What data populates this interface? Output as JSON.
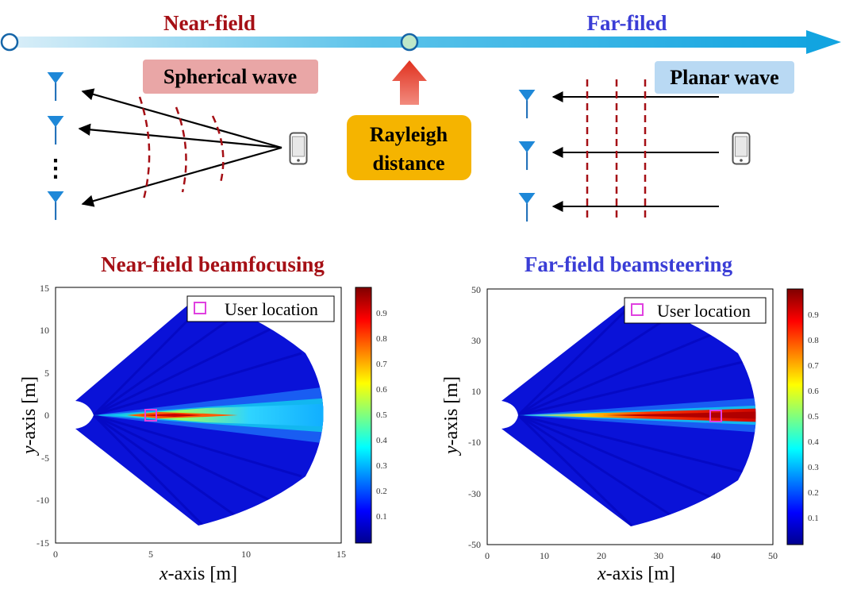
{
  "timeline": {
    "near_label": "Near-field",
    "far_label": "Far-filed",
    "rayleigh_label": "Rayleigh\ndistance",
    "colors": {
      "near": "#a50f15",
      "far": "#3a3dd6",
      "arrow": "#1aa7e0",
      "rayleigh_box": "#f5b400",
      "up_arrow": "#e53935"
    }
  },
  "near_diagram": {
    "wave_label": "Spherical wave",
    "dots": "⋮"
  },
  "far_diagram": {
    "wave_label": "Planar wave"
  },
  "plots": [
    {
      "title": "Near-field beamfocusing",
      "xlabel_italic": "x",
      "xlabel_rest": "-axis [m]",
      "ylabel_italic": "y",
      "ylabel_rest": "-axis [m]",
      "legend": "User location",
      "x_ticks": [
        "0",
        "5",
        "10",
        "15"
      ],
      "y_ticks": [
        "15",
        "10",
        "5",
        "0",
        "-5",
        "-10",
        "-15"
      ],
      "colorbar_ticks": [
        "0.9",
        "0.8",
        "0.7",
        "0.6",
        "0.5",
        "0.4",
        "0.3",
        "0.2",
        "0.1"
      ],
      "xlim": [
        0,
        15
      ],
      "ylim": [
        -15,
        15
      ],
      "user": [
        5,
        0
      ]
    },
    {
      "title": "Far-field beamsteering",
      "xlabel_italic": "x",
      "xlabel_rest": "-axis [m]",
      "ylabel_italic": "y",
      "ylabel_rest": "-axis [m]",
      "legend": "User location",
      "x_ticks": [
        "0",
        "10",
        "20",
        "30",
        "40",
        "50"
      ],
      "y_ticks": [
        "50",
        "30",
        "10",
        "-10",
        "-30",
        "-50"
      ],
      "colorbar_ticks": [
        "0.9",
        "0.8",
        "0.7",
        "0.6",
        "0.5",
        "0.4",
        "0.3",
        "0.2",
        "0.1"
      ],
      "xlim": [
        0,
        50
      ],
      "ylim": [
        -50,
        50
      ],
      "user": [
        40,
        0
      ]
    }
  ]
}
